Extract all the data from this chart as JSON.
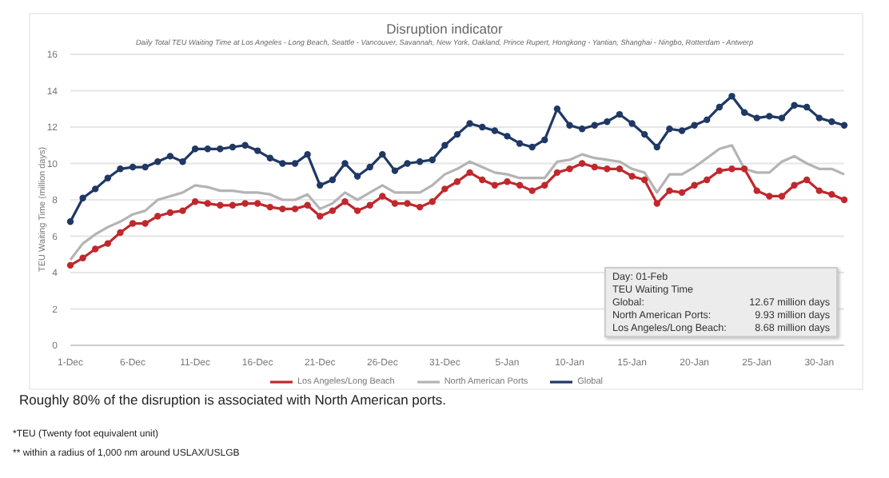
{
  "chart_data": {
    "type": "line",
    "title": "Disruption indicator",
    "subtitle": "Daily Total TEU Waiting Time at Los Angeles - Long Beach, Seattle - Vancouver, Savannah, New York, Oakland, Prince Rupert, Hongkong - Yantian, Shanghai - Ningbo, Rotterdam - Antwerp",
    "ylabel": "TEU Waiting Time (million days)",
    "categories": [
      "1-Dec",
      null,
      null,
      null,
      null,
      "6-Dec",
      null,
      null,
      null,
      null,
      "11-Dec",
      null,
      null,
      null,
      null,
      "16-Dec",
      null,
      null,
      null,
      null,
      "21-Dec",
      null,
      null,
      null,
      null,
      "26-Dec",
      null,
      null,
      null,
      null,
      "31-Dec",
      null,
      null,
      null,
      null,
      "5-Jan",
      null,
      null,
      null,
      null,
      "10-Jan",
      null,
      null,
      null,
      null,
      "15-Jan",
      null,
      null,
      null,
      null,
      "20-Jan",
      null,
      null,
      null,
      null,
      "25-Jan",
      null,
      null,
      null,
      null,
      "30-Jan",
      null,
      null
    ],
    "series": [
      {
        "name": "Los Angeles/Long Beach",
        "color": "#c0282d",
        "marker": "circle",
        "values": [
          4.4,
          4.8,
          5.3,
          5.6,
          6.2,
          6.7,
          6.7,
          7.1,
          7.3,
          7.4,
          7.9,
          7.8,
          7.7,
          7.7,
          7.8,
          7.8,
          7.6,
          7.5,
          7.5,
          7.7,
          7.1,
          7.4,
          7.9,
          7.4,
          7.7,
          8.2,
          7.8,
          7.8,
          7.6,
          7.9,
          8.6,
          9.0,
          9.5,
          9.1,
          8.8,
          9.0,
          8.8,
          8.5,
          8.8,
          9.5,
          9.7,
          10.0,
          9.8,
          9.7,
          9.7,
          9.3,
          9.1,
          7.8,
          8.5,
          8.4,
          8.8,
          9.1,
          9.6,
          9.7,
          9.7,
          8.5,
          8.2,
          8.2,
          8.8,
          9.1,
          8.5,
          8.3,
          8.0
        ]
      },
      {
        "name": "North American Ports",
        "color": "#b4b4b4",
        "marker": "none",
        "values": [
          4.7,
          5.6,
          6.1,
          6.5,
          6.8,
          7.2,
          7.4,
          8.0,
          8.2,
          8.4,
          8.8,
          8.7,
          8.5,
          8.5,
          8.4,
          8.4,
          8.3,
          8.0,
          8.0,
          8.3,
          7.5,
          7.8,
          8.4,
          8.0,
          8.4,
          8.8,
          8.4,
          8.4,
          8.4,
          8.8,
          9.4,
          9.7,
          10.1,
          9.8,
          9.5,
          9.4,
          9.2,
          9.2,
          9.2,
          10.1,
          10.2,
          10.5,
          10.3,
          10.2,
          10.1,
          9.7,
          9.5,
          8.4,
          9.4,
          9.4,
          9.8,
          10.3,
          10.8,
          11.0,
          9.7,
          9.5,
          9.5,
          10.1,
          10.4,
          10.0,
          9.7,
          9.7,
          9.4
        ]
      },
      {
        "name": "Global",
        "color": "#1f3864",
        "marker": "circle",
        "values": [
          6.8,
          8.1,
          8.6,
          9.2,
          9.7,
          9.8,
          9.8,
          10.1,
          10.4,
          10.1,
          10.8,
          10.8,
          10.8,
          10.9,
          11.0,
          10.7,
          10.3,
          10.0,
          10.0,
          10.5,
          8.8,
          9.1,
          10.0,
          9.3,
          9.8,
          10.5,
          9.6,
          10.0,
          10.1,
          10.2,
          11.0,
          11.6,
          12.2,
          12.0,
          11.8,
          11.5,
          11.1,
          10.9,
          11.3,
          13.0,
          12.1,
          11.9,
          12.1,
          12.3,
          12.7,
          12.2,
          11.6,
          10.9,
          11.9,
          11.8,
          12.1,
          12.4,
          13.1,
          13.7,
          12.8,
          12.5,
          12.6,
          12.5,
          13.2,
          13.1,
          12.5,
          12.3,
          12.1
        ]
      }
    ],
    "ylim": [
      0,
      16
    ],
    "yticks": [
      0,
      2,
      4,
      6,
      8,
      10,
      12,
      14,
      16
    ],
    "grid": "y",
    "legend": "bottom",
    "line_style": "solid",
    "annotations": [
      "Day: 01-Feb",
      "TEU Waiting Time",
      "Global:",
      "12.67 million days",
      "North American Ports:",
      "9.93 million days",
      "Los Angeles/Long Beach:",
      "8.68 million days",
      "Roughly 80% of the disruption is associated with North American ports.",
      "*TEU (Twenty foot equivalent unit)",
      "** within a radius of 1,000 nm around USLAX/USLGB"
    ]
  }
}
